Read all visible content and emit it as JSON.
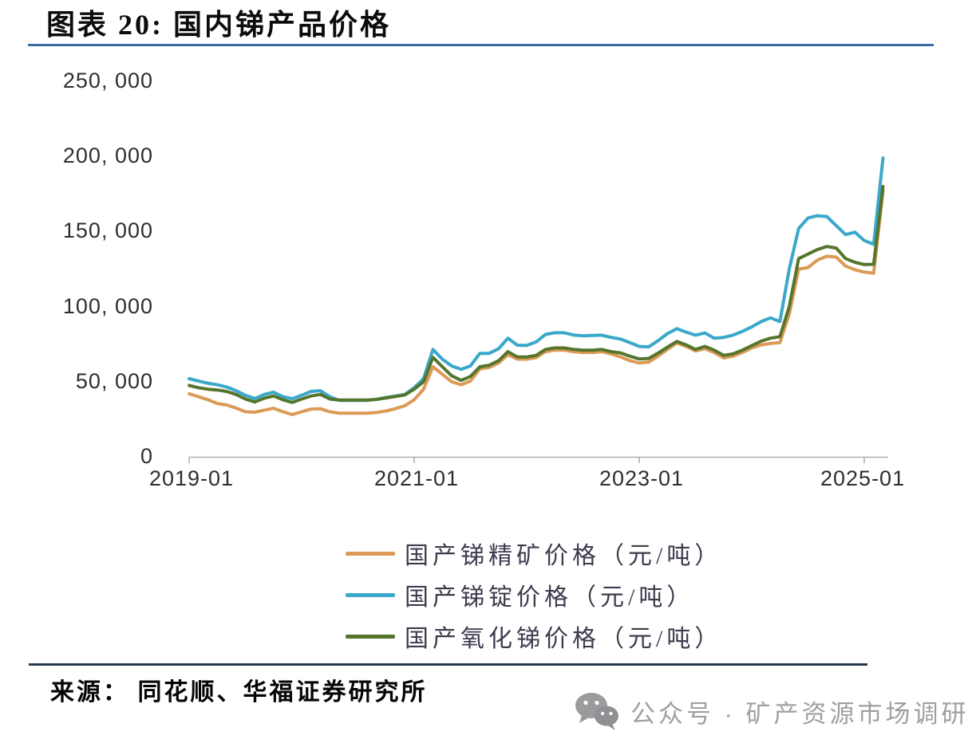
{
  "header": {
    "title": "图表 20:  国内锑产品价格"
  },
  "chart_data": {
    "type": "line",
    "title": "国内锑产品价格",
    "grid": false,
    "legend_position": "bottom",
    "x_axis": {
      "unit": "months",
      "start": "2019-01",
      "end": "2025-03",
      "step_months": 1,
      "ticks": [
        {
          "t": 0,
          "label": "2019-01",
          "clipped": false
        },
        {
          "t": 24,
          "label": "2021-01",
          "clipped": false
        },
        {
          "t": 48,
          "label": "2023-01",
          "clipped": false
        },
        {
          "t": 72,
          "label": "2025-01",
          "clipped": true
        }
      ]
    },
    "y_axis": {
      "min": 0,
      "max": 250000,
      "ticks": [
        {
          "v": 250000,
          "label": "250, 000"
        },
        {
          "v": 200000,
          "label": "200, 000"
        },
        {
          "v": 150000,
          "label": "150, 000"
        },
        {
          "v": 100000,
          "label": "100, 000"
        },
        {
          "v": 50000,
          "label": "50, 000"
        },
        {
          "v": 0,
          "label": "0"
        }
      ]
    },
    "series": [
      {
        "name": "国产锑精矿价格（元/吨）",
        "color": "#DB9A55",
        "values": [
          42000,
          40000,
          38000,
          35500,
          34500,
          32500,
          30000,
          29700,
          31000,
          32300,
          30000,
          28200,
          30000,
          31800,
          32000,
          30000,
          29100,
          29100,
          29100,
          29100,
          29500,
          30500,
          32000,
          34000,
          38000,
          45000,
          60000,
          55000,
          50000,
          48000,
          50500,
          58500,
          59500,
          62500,
          68000,
          65000,
          65000,
          66000,
          70000,
          71000,
          71000,
          70000,
          69500,
          69500,
          70000,
          68500,
          66500,
          64000,
          62500,
          63000,
          67000,
          71500,
          75800,
          73500,
          70500,
          72000,
          69500,
          65800,
          67000,
          69500,
          72500,
          74500,
          75500,
          76000,
          95000,
          125000,
          126000,
          131000,
          133500,
          133000,
          127000,
          124500,
          123000,
          122300,
          177000
        ]
      },
      {
        "name": "国产锑锭价格（元/吨）",
        "color": "#3AA8CA",
        "values": [
          52000,
          50500,
          49000,
          48000,
          46500,
          44000,
          41000,
          38800,
          41500,
          43000,
          40000,
          38700,
          41000,
          43500,
          44000,
          40000,
          37600,
          37600,
          37600,
          37600,
          38300,
          39500,
          40500,
          41500,
          46000,
          52000,
          71500,
          65000,
          60500,
          58300,
          60500,
          68900,
          68900,
          72000,
          79000,
          74300,
          74200,
          76500,
          81500,
          82600,
          82600,
          81100,
          80500,
          80800,
          81000,
          79500,
          78400,
          76000,
          73500,
          73200,
          77300,
          82000,
          85300,
          83000,
          81000,
          82500,
          79000,
          79500,
          81000,
          83500,
          86500,
          90000,
          92500,
          90000,
          125000,
          152000,
          159000,
          160500,
          160000,
          154000,
          148000,
          149500,
          144000,
          141500,
          199000
        ]
      },
      {
        "name": "国产氧化锑价格（元/吨）",
        "color": "#55752D",
        "values": [
          47500,
          46000,
          45000,
          44500,
          43500,
          41500,
          38500,
          36500,
          39000,
          40500,
          38000,
          36200,
          38500,
          40500,
          41500,
          38500,
          37800,
          37800,
          37800,
          37800,
          38200,
          39200,
          40200,
          41200,
          45000,
          50000,
          66200,
          60000,
          54000,
          50900,
          53500,
          60000,
          61000,
          64000,
          70000,
          66500,
          66500,
          67500,
          71500,
          72500,
          72500,
          71500,
          71000,
          71000,
          71500,
          70000,
          69200,
          67000,
          65200,
          65500,
          69000,
          73000,
          76800,
          74500,
          71500,
          73500,
          71000,
          67500,
          68500,
          71000,
          74000,
          77000,
          79000,
          80000,
          100000,
          132000,
          135000,
          138000,
          140000,
          139000,
          132000,
          129500,
          128000,
          128200,
          180000
        ]
      }
    ],
    "axis_color": "#b0b0b0"
  },
  "source": {
    "text": "来源： 同花顺、华福证券研究所"
  },
  "watermark": {
    "icon": "wechat-icon",
    "text": "公众号 · 矿产资源市场调研"
  }
}
